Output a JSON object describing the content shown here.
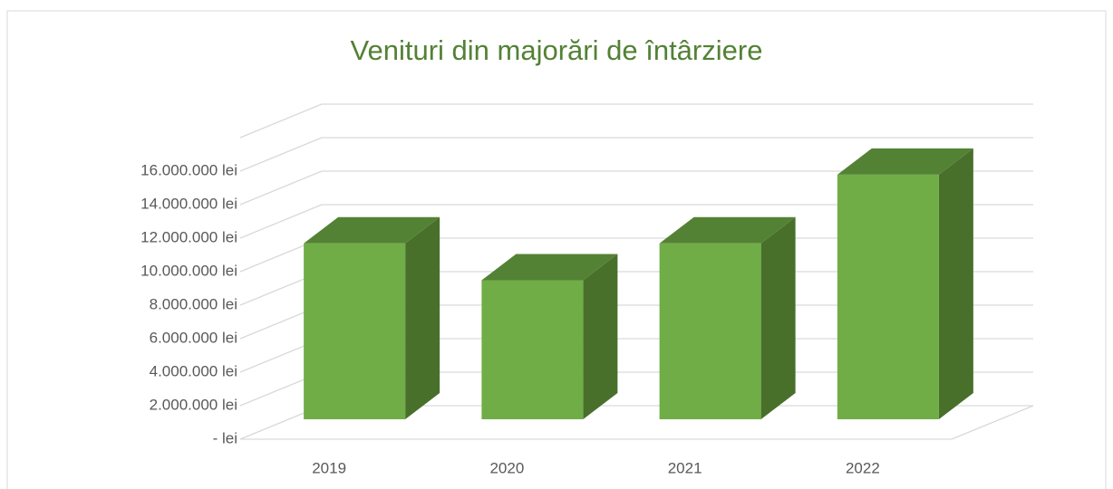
{
  "chart_data": {
    "type": "bar3d",
    "title": "Venituri din majorări de întârziere",
    "categories": [
      "2019",
      "2020",
      "2021",
      "2022"
    ],
    "values": [
      10500000,
      8300000,
      10500000,
      14600000
    ],
    "color": "#70ad47",
    "ylim": [
      0,
      18000000
    ],
    "yticks": [
      {
        "value": 0,
        "label": "-  lei"
      },
      {
        "value": 2000000,
        "label": "2.000.000  lei"
      },
      {
        "value": 4000000,
        "label": "4.000.000  lei"
      },
      {
        "value": 6000000,
        "label": "6.000.000  lei"
      },
      {
        "value": 8000000,
        "label": "8.000.000  lei"
      },
      {
        "value": 10000000,
        "label": "10.000.000  lei"
      },
      {
        "value": 12000000,
        "label": "12.000.000  lei"
      },
      {
        "value": 14000000,
        "label": "14.000.000  lei"
      },
      {
        "value": 16000000,
        "label": "16.000.000  lei"
      }
    ],
    "grid": true
  }
}
